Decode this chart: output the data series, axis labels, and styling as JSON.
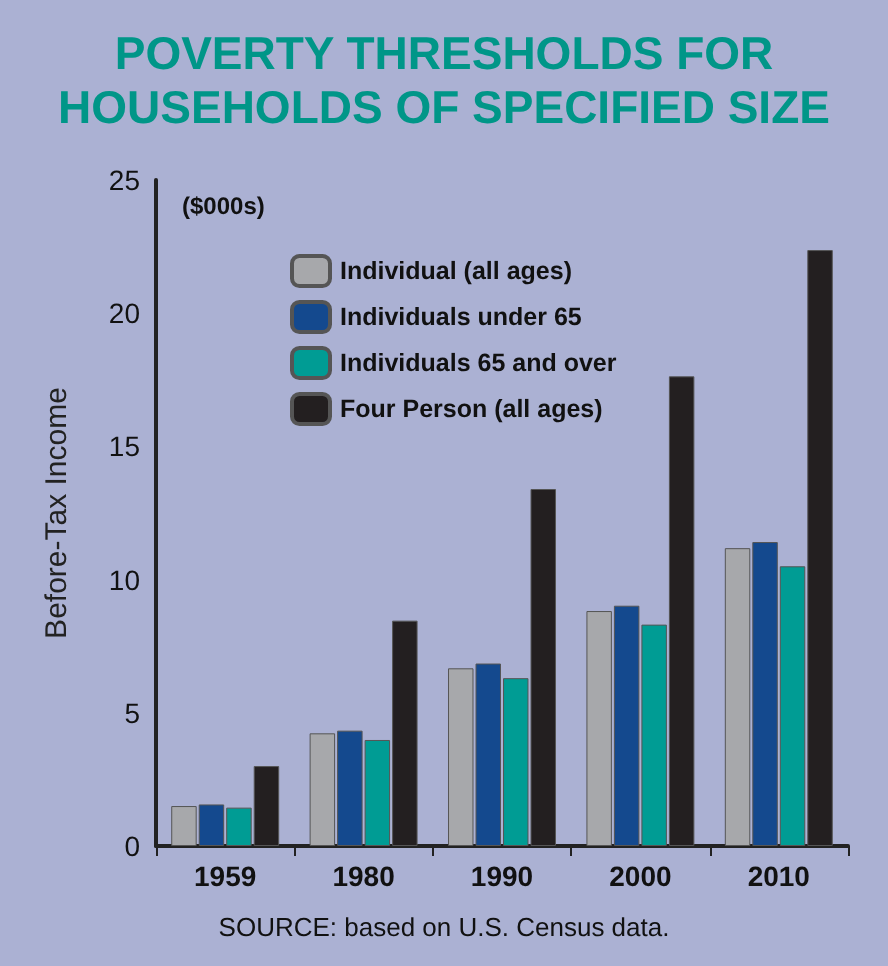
{
  "chart_data": {
    "type": "bar",
    "title": "POVERTY THRESHOLDS FOR\nHOUSEHOLDS OF SPECIFIED SIZE",
    "subtitle": "($000s)",
    "ylabel": "Before-Tax Income",
    "categories": [
      "1959",
      "1980",
      "1990",
      "2000",
      "2010"
    ],
    "series": [
      {
        "name": "Individual (all ages)",
        "color": "#a7a8ab",
        "values": [
          1.5,
          4.23,
          6.67,
          8.82,
          11.18
        ]
      },
      {
        "name": "Individuals under 65",
        "color": "#14498e",
        "values": [
          1.56,
          4.33,
          6.85,
          9.02,
          11.41
        ]
      },
      {
        "name": "Individuals 65 and over",
        "color": "#009c94",
        "values": [
          1.44,
          3.98,
          6.3,
          8.31,
          10.5
        ]
      },
      {
        "name": "Four Person (all ages)",
        "color": "#231f20",
        "values": [
          3.0,
          8.46,
          13.4,
          17.63,
          22.37
        ]
      }
    ],
    "ylim": [
      0,
      25
    ],
    "yticks": [
      0,
      5,
      10,
      15,
      20,
      25
    ],
    "grid": false,
    "legend": "top left",
    "annotations": [
      "SOURCE: based on U.S. Census data."
    ]
  }
}
